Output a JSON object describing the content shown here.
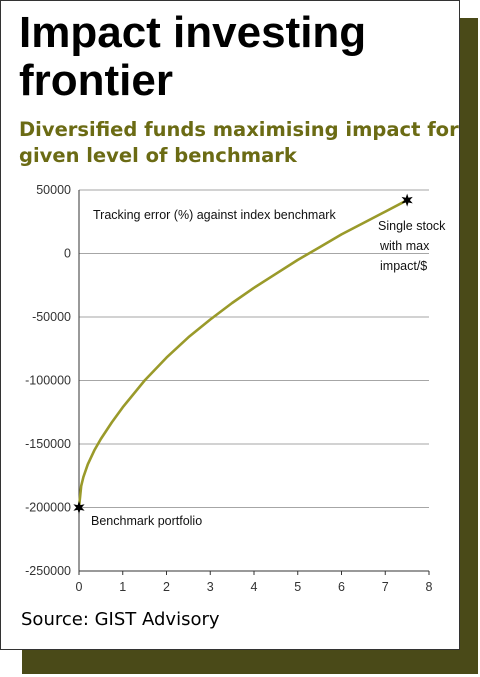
{
  "title": "Impact investing frontier",
  "subtitle": "Diversified funds maximising impact for given level of benchmark",
  "source": "Source: GIST Advisory",
  "chart_data": {
    "type": "line",
    "x_ticks": [
      "0",
      "1",
      "2",
      "3",
      "4",
      "5",
      "6",
      "7",
      "8"
    ],
    "y_ticks": [
      "50000",
      "0",
      "-50000",
      "-100000",
      "-150000",
      "-200000",
      "-250000"
    ],
    "xlim": [
      0,
      8
    ],
    "ylim": [
      -250000,
      50000
    ],
    "grid": "horizontal",
    "line_color": "#9a9a2a",
    "series": [
      {
        "x": [
          0,
          0.05,
          0.1,
          0.2,
          0.35,
          0.5,
          0.75,
          1,
          1.5,
          2,
          2.5,
          3,
          3.5,
          4,
          4.5,
          5,
          5.5,
          6,
          6.5,
          7,
          7.5
        ],
        "values": [
          -200000,
          -183000,
          -176000,
          -166000,
          -155000,
          -146000,
          -133000,
          -121000,
          -100000,
          -82000,
          -66000,
          -52000,
          -39000,
          -27000,
          -16000,
          -5000,
          5000,
          15000,
          24000,
          33000,
          42000
        ]
      }
    ],
    "annotations": {
      "tracking_label": "Tracking error (%) against index benchmark",
      "benchmark_label": "Benchmark portfolio",
      "single_stock_line1": "Single stock",
      "single_stock_line2": "with max",
      "single_stock_line3": "impact/$"
    },
    "markers": [
      {
        "name": "benchmark-portfolio",
        "x": 0,
        "y": -200000
      },
      {
        "name": "single-stock",
        "x": 7.5,
        "y": 42000
      }
    ]
  }
}
